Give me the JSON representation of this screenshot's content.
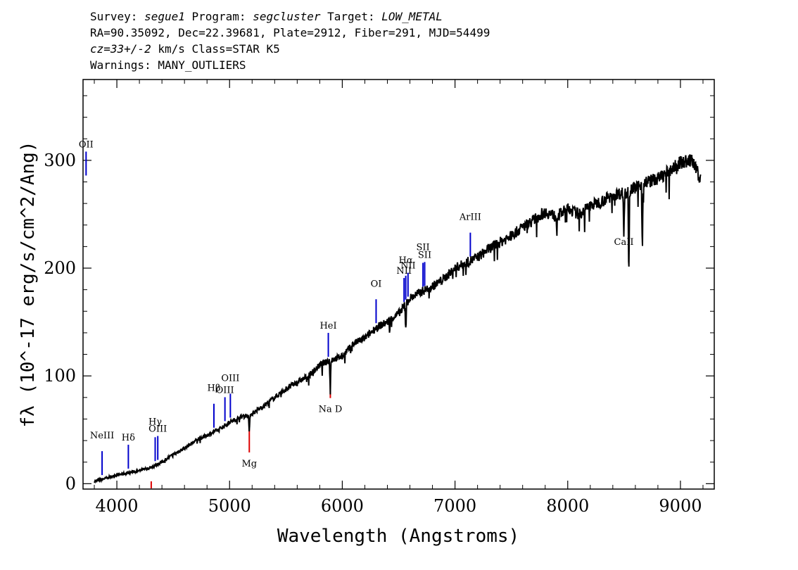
{
  "header": {
    "line1": {
      "p1": "Survey: ",
      "survey": "segue1",
      "p2": " Program: ",
      "program": "segcluster",
      "p3": " Target: ",
      "target": "LOW_METAL"
    },
    "line2": "RA=90.35092, Dec=22.39681, Plate=2912, Fiber=291, MJD=54499",
    "line3": {
      "cz": "cz=33+/-2",
      "rest": " km/s Class=STAR K5"
    },
    "line4": "Warnings: MANY_OUTLIERS"
  },
  "chart_data": {
    "type": "line",
    "xlabel": "Wavelength (Angstroms)",
    "ylabel": "fλ (10^-17 erg/s/cm^2/Ang)",
    "xlim": [
      3700,
      9300
    ],
    "ylim": [
      -5,
      375
    ],
    "xticks": [
      4000,
      5000,
      6000,
      7000,
      8000,
      9000
    ],
    "yticks": [
      0,
      100,
      200,
      300
    ],
    "grid": false,
    "colors": {
      "spectrum": "#000000",
      "emission": "#0000cc",
      "absorption": "#dd0000"
    },
    "series": [
      {
        "x": [
          3800,
          3900,
          4000,
          4100,
          4200,
          4300,
          4400,
          4500,
          4600,
          4700,
          4800,
          4900,
          5000,
          5100,
          5200,
          5300,
          5400,
          5500,
          5600,
          5700,
          5800,
          5900,
          6000,
          6100,
          6200,
          6300,
          6400,
          6500,
          6600,
          6700,
          6800,
          6900,
          7000,
          7100,
          7200,
          7300,
          7400,
          7500,
          7600,
          7700,
          7800,
          7900,
          8000,
          8100,
          8200,
          8300,
          8400,
          8500,
          8600,
          8700,
          8800,
          8900,
          9000,
          9100,
          9180
        ],
        "y": [
          2,
          5,
          8,
          10,
          12,
          15,
          20,
          27,
          33,
          40,
          45,
          50,
          57,
          62,
          65,
          72,
          80,
          88,
          94,
          100,
          110,
          115,
          118,
          130,
          135,
          145,
          150,
          158,
          172,
          178,
          183,
          190,
          200,
          205,
          210,
          218,
          224,
          230,
          238,
          245,
          252,
          248,
          255,
          250,
          258,
          262,
          268,
          270,
          275,
          280,
          283,
          290,
          298,
          300,
          282
        ]
      }
    ],
    "absorption_dips": [
      {
        "x": 5175,
        "depth": 18
      },
      {
        "x": 5893,
        "depth": 28
      },
      {
        "x": 6563,
        "depth": 25
      },
      {
        "x": 8498,
        "depth": 42
      },
      {
        "x": 8542,
        "depth": 80
      },
      {
        "x": 8662,
        "depth": 60
      }
    ],
    "emission_lines": [
      {
        "label": "OII",
        "x": 3727
      },
      {
        "label": "NeIII",
        "x": 3869
      },
      {
        "label": "Hδ",
        "x": 4102
      },
      {
        "label": "Hγ",
        "x": 4340
      },
      {
        "label": "OIII",
        "x": 4363
      },
      {
        "label": "Hβ",
        "x": 4861
      },
      {
        "label": "OIII",
        "x": 4959
      },
      {
        "label": "OIII",
        "x": 5007
      },
      {
        "label": "HeI",
        "x": 5876
      },
      {
        "label": "OI",
        "x": 6300
      },
      {
        "label": "NII",
        "x": 6548
      },
      {
        "label": "Hα",
        "x": 6563
      },
      {
        "label": "NII",
        "x": 6583
      },
      {
        "label": "SII",
        "x": 6716
      },
      {
        "label": "SII",
        "x": 6731
      },
      {
        "label": "ArIII",
        "x": 7136
      }
    ],
    "absorption_lines": [
      {
        "label": "",
        "x": 4305
      },
      {
        "label": "Mg",
        "x": 5175
      },
      {
        "label": "Na D",
        "x": 5894
      },
      {
        "label": "CaII",
        "x": 8498
      },
      {
        "label": "",
        "x": 8542
      },
      {
        "label": "",
        "x": 8662
      }
    ]
  }
}
